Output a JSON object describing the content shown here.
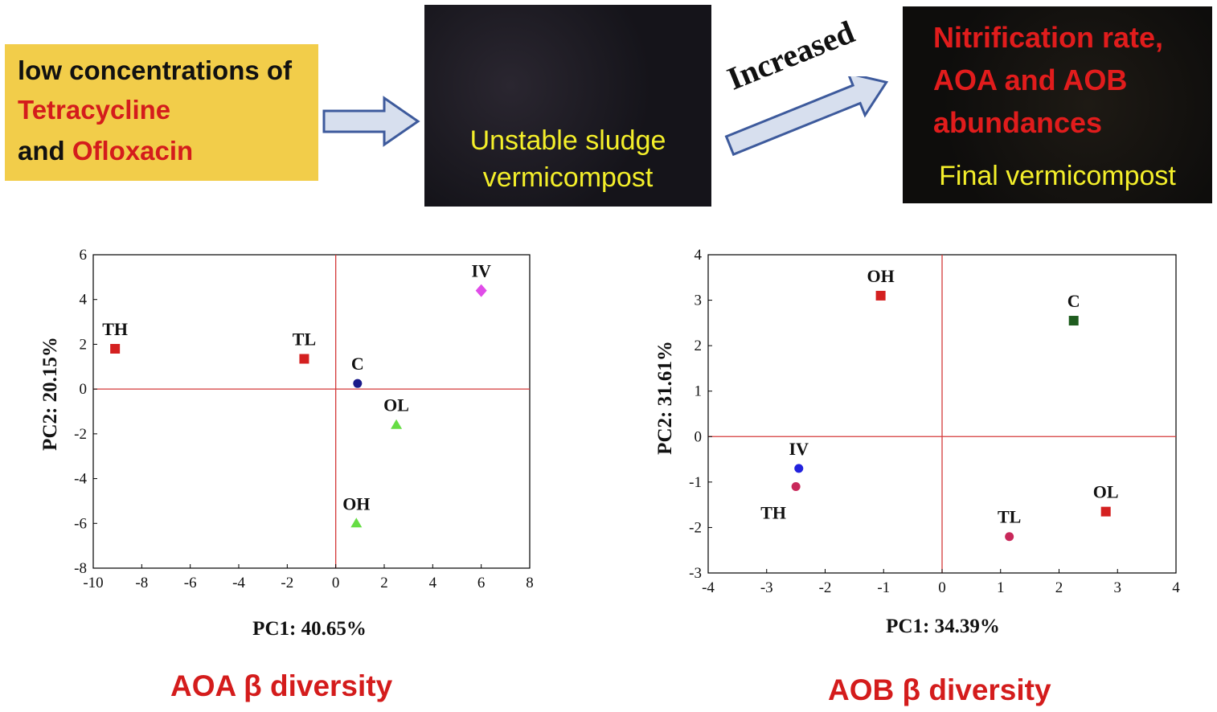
{
  "header": {
    "input_box": {
      "line1": "low concentrations of",
      "line2": "Tetracycline",
      "line3_prefix": "and ",
      "line3_red": "Ofloxacin"
    },
    "photo1": {
      "line1": "Unstable sludge",
      "line2": "vermicompost"
    },
    "arrow_label": "Increased",
    "photo2": {
      "red_line1": "Nitrification rate,",
      "red_line2": "AOA and AOB",
      "red_line3": "abundances",
      "yellow_line": "Final vermicompost"
    }
  },
  "captions": {
    "left": "AOA β diversity",
    "right": "AOB β diversity"
  },
  "colors": {
    "red": "#d41c1c",
    "yellow_box": "#f2cd4a",
    "photo_text": "#f4ef2a",
    "axis_line": "#d43a3a"
  },
  "chart_data": [
    {
      "type": "scatter",
      "title": "AOA β diversity",
      "xlabel": "PC1: 40.65%",
      "ylabel": "PC2: 20.15%",
      "xlim": [
        -10,
        8
      ],
      "ylim": [
        -8,
        6
      ],
      "xticks": [
        -10,
        -8,
        -6,
        -4,
        -2,
        0,
        2,
        4,
        6,
        8
      ],
      "yticks": [
        6,
        4,
        2,
        0,
        -2,
        -4,
        -6,
        -8
      ],
      "reference_lines": {
        "x": 0,
        "y": 0
      },
      "points": [
        {
          "label": "TH",
          "x": -9.1,
          "y": 1.8,
          "marker": "square",
          "color": "#d42020"
        },
        {
          "label": "TL",
          "x": -1.3,
          "y": 1.35,
          "marker": "square",
          "color": "#d42020"
        },
        {
          "label": "C",
          "x": 0.9,
          "y": 0.25,
          "marker": "circle",
          "color": "#1a1a8a"
        },
        {
          "label": "OL",
          "x": 2.5,
          "y": -1.6,
          "marker": "triangle",
          "color": "#66dd44"
        },
        {
          "label": "OH",
          "x": 0.85,
          "y": -6.0,
          "marker": "triangle",
          "color": "#66dd44"
        },
        {
          "label": "IV",
          "x": 6.0,
          "y": 4.4,
          "marker": "diamond",
          "color": "#e04ce8"
        }
      ]
    },
    {
      "type": "scatter",
      "title": "AOB β diversity",
      "xlabel": "PC1: 34.39%",
      "ylabel": "PC2: 31.61%",
      "xlim": [
        -4,
        4
      ],
      "ylim": [
        -3,
        4
      ],
      "xticks": [
        -4,
        -3,
        -2,
        -1,
        0,
        1,
        2,
        3,
        4
      ],
      "yticks": [
        4,
        3,
        2,
        1,
        0,
        -1,
        -2,
        -3
      ],
      "reference_lines": {
        "x": 0,
        "y": 0
      },
      "points": [
        {
          "label": "OH",
          "x": -1.05,
          "y": 3.1,
          "marker": "square",
          "color": "#d42020"
        },
        {
          "label": "C",
          "x": 2.25,
          "y": 2.55,
          "marker": "square",
          "color": "#1e5c1e"
        },
        {
          "label": "IV",
          "x": -2.45,
          "y": -0.7,
          "marker": "circle",
          "color": "#2222dd"
        },
        {
          "label": "TH",
          "x": -2.5,
          "y": -1.1,
          "marker": "circle",
          "color": "#c8285a"
        },
        {
          "label": "TL",
          "x": 1.15,
          "y": -2.2,
          "marker": "circle",
          "color": "#c8285a"
        },
        {
          "label": "OL",
          "x": 2.8,
          "y": -1.65,
          "marker": "square",
          "color": "#d42020"
        }
      ]
    }
  ]
}
